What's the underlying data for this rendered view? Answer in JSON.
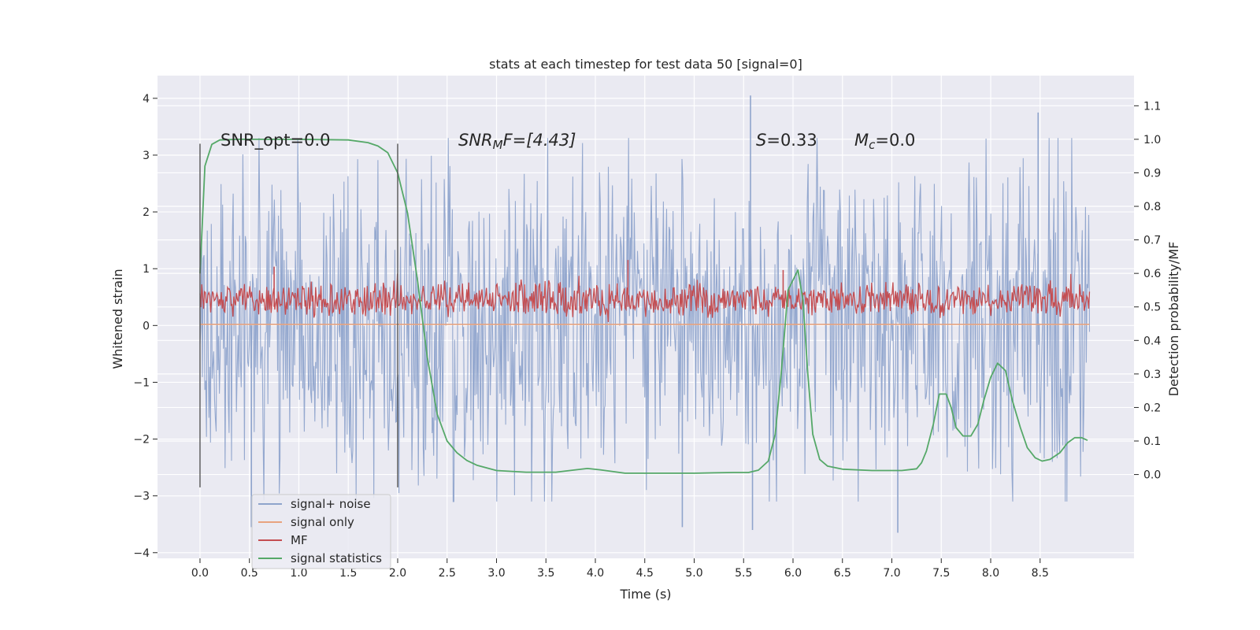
{
  "chart_data": {
    "type": "line",
    "title": "stats at each timestep for test data 50 [signal=0]",
    "xlabel": "Time (s)",
    "ylabel": "Whitened strain",
    "ylabel_right": "Detection probability/MF",
    "xlim": [
      -0.43,
      9.45
    ],
    "ylim": [
      -4.1,
      4.4
    ],
    "ylim_right": [
      -0.25,
      1.19
    ],
    "x_ticks": [
      0.0,
      0.5,
      1.0,
      1.5,
      2.0,
      2.5,
      3.0,
      3.5,
      4.0,
      4.5,
      5.0,
      5.5,
      6.0,
      6.5,
      7.0,
      7.5,
      8.0,
      8.5
    ],
    "x_tick_labels": [
      "0.0",
      "0.5",
      "1.0",
      "1.5",
      "2.0",
      "2.5",
      "3.0",
      "3.5",
      "4.0",
      "4.5",
      "5.0",
      "5.5",
      "6.0",
      "6.5",
      "7.0",
      "7.5",
      "8.0",
      "8.5"
    ],
    "y_ticks": [
      4,
      3,
      2,
      1,
      0,
      -1,
      -2,
      -3,
      -4
    ],
    "y_tick_labels": [
      "4",
      "3",
      "2",
      "1",
      "0",
      "−1",
      "−2",
      "−3",
      "−4"
    ],
    "y_ticks_right": [
      1.1,
      1.0,
      0.9,
      0.8,
      0.7,
      0.6,
      0.5,
      0.4,
      0.3,
      0.2,
      0.1,
      0.0
    ],
    "y_tick_labels_right": [
      "1.1",
      "1.0",
      "0.9",
      "0.8",
      "0.7",
      "0.6",
      "0.5",
      "0.4",
      "0.3",
      "0.2",
      "0.1",
      "0.0"
    ],
    "grid": true,
    "legend_position": "lower-left",
    "series": [
      {
        "name": "signal+ noise",
        "axis": "left",
        "color": "#8fa4cc",
        "x_range": [
          0.0,
          9.0
        ],
        "style": "noise",
        "amplitude_typical": 1.8,
        "peaks": [
          {
            "x": 5.57,
            "y": 4.05
          },
          {
            "x": 8.48,
            "y": 3.75
          },
          {
            "x": 4.88,
            "y": -3.55
          },
          {
            "x": 7.06,
            "y": -3.65
          },
          {
            "x": 5.59,
            "y": -3.6
          },
          {
            "x": 0.52,
            "y": -3.55
          }
        ]
      },
      {
        "name": "signal only",
        "axis": "left",
        "color": "#e8a37f",
        "points": [
          [
            0.0,
            0.02
          ],
          [
            9.0,
            0.02
          ]
        ]
      },
      {
        "name": "MF",
        "axis": "right",
        "color": "#c44e52",
        "x_range": [
          0.0,
          9.0
        ],
        "style": "noise",
        "baseline": 0.5,
        "band": [
          0.48,
          0.56
        ],
        "peaks": [
          {
            "x": 0.75,
            "y": 0.62
          },
          {
            "x": 4.33,
            "y": 0.64
          },
          {
            "x": 5.9,
            "y": 0.61
          }
        ]
      },
      {
        "name": "signal statistics",
        "axis": "right",
        "color": "#55a868",
        "points": [
          [
            0.0,
            0.6
          ],
          [
            0.05,
            0.92
          ],
          [
            0.12,
            0.985
          ],
          [
            0.2,
            0.998
          ],
          [
            0.4,
            1.0
          ],
          [
            1.0,
            1.0
          ],
          [
            1.5,
            0.998
          ],
          [
            1.7,
            0.99
          ],
          [
            1.8,
            0.98
          ],
          [
            1.9,
            0.96
          ],
          [
            2.0,
            0.9
          ],
          [
            2.1,
            0.78
          ],
          [
            2.2,
            0.58
          ],
          [
            2.3,
            0.35
          ],
          [
            2.4,
            0.18
          ],
          [
            2.5,
            0.1
          ],
          [
            2.6,
            0.065
          ],
          [
            2.7,
            0.042
          ],
          [
            2.8,
            0.028
          ],
          [
            3.0,
            0.012
          ],
          [
            3.3,
            0.007
          ],
          [
            3.6,
            0.007
          ],
          [
            3.8,
            0.014
          ],
          [
            3.92,
            0.018
          ],
          [
            4.05,
            0.014
          ],
          [
            4.3,
            0.004
          ],
          [
            4.6,
            0.004
          ],
          [
            5.0,
            0.004
          ],
          [
            5.2,
            0.005
          ],
          [
            5.4,
            0.006
          ],
          [
            5.55,
            0.006
          ],
          [
            5.65,
            0.013
          ],
          [
            5.75,
            0.04
          ],
          [
            5.82,
            0.12
          ],
          [
            5.88,
            0.3
          ],
          [
            5.95,
            0.55
          ],
          [
            6.05,
            0.61
          ],
          [
            6.1,
            0.52
          ],
          [
            6.15,
            0.3
          ],
          [
            6.2,
            0.12
          ],
          [
            6.27,
            0.045
          ],
          [
            6.35,
            0.025
          ],
          [
            6.5,
            0.016
          ],
          [
            6.8,
            0.012
          ],
          [
            7.1,
            0.012
          ],
          [
            7.25,
            0.017
          ],
          [
            7.3,
            0.035
          ],
          [
            7.35,
            0.07
          ],
          [
            7.42,
            0.15
          ],
          [
            7.48,
            0.24
          ],
          [
            7.55,
            0.24
          ],
          [
            7.6,
            0.2
          ],
          [
            7.65,
            0.14
          ],
          [
            7.72,
            0.115
          ],
          [
            7.8,
            0.115
          ],
          [
            7.87,
            0.15
          ],
          [
            7.93,
            0.22
          ],
          [
            8.0,
            0.29
          ],
          [
            8.07,
            0.332
          ],
          [
            8.15,
            0.31
          ],
          [
            8.22,
            0.22
          ],
          [
            8.3,
            0.14
          ],
          [
            8.37,
            0.08
          ],
          [
            8.45,
            0.05
          ],
          [
            8.52,
            0.04
          ],
          [
            8.6,
            0.045
          ],
          [
            8.7,
            0.065
          ],
          [
            8.78,
            0.095
          ],
          [
            8.85,
            0.11
          ],
          [
            8.92,
            0.11
          ],
          [
            8.98,
            0.102
          ]
        ]
      }
    ],
    "vertical_markers": [
      {
        "x": 0.0,
        "y_range": [
          -2.85,
          3.2
        ],
        "color": "#555555"
      },
      {
        "x": 2.0,
        "y_range": [
          -2.85,
          3.2
        ],
        "color": "#555555"
      }
    ],
    "annotations": [
      {
        "id": "snr_opt",
        "text": "SNR_opt=0.0",
        "x": 0.2,
        "y": 3.2
      },
      {
        "id": "snr_mf",
        "text": "SNR_MF=[4.43]",
        "x": 2.6,
        "y": 3.2,
        "main": "SNR",
        "sub": "M",
        "after_sub": "F=[4.43]"
      },
      {
        "id": "s_val",
        "text": "S=0.33",
        "x": 5.6,
        "y": 3.2,
        "main": "S",
        "after": "=0.33"
      },
      {
        "id": "mc",
        "text": "Mc=0.0",
        "x": 6.6,
        "y": 3.2,
        "main": "M",
        "sub": "c",
        "after_sub": "=0.0"
      }
    ]
  }
}
